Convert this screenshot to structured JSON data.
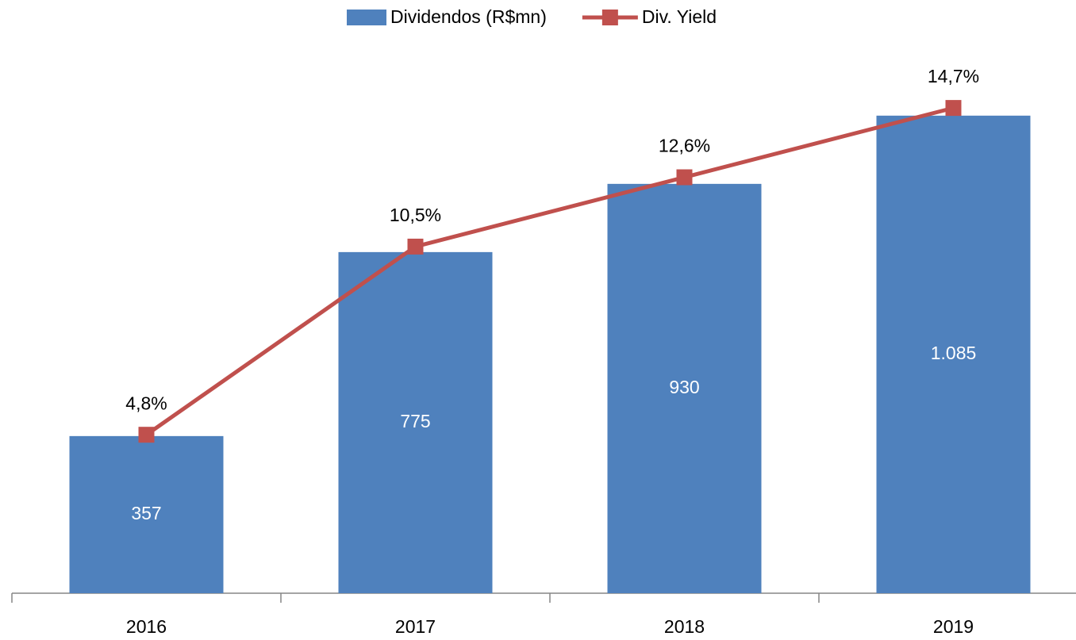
{
  "chart_data": {
    "type": "bar",
    "categories": [
      "2016",
      "2017",
      "2018",
      "2019"
    ],
    "series": [
      {
        "name": "Dividendos (R$mn)",
        "type": "bar",
        "color": "#4f81bd",
        "values": [
          357,
          775,
          930,
          1085
        ],
        "value_labels": [
          "357",
          "775",
          "930",
          "1.085"
        ]
      },
      {
        "name": "Div. Yield",
        "type": "line",
        "axis": "y2",
        "color": "#c0504d",
        "values": [
          4.8,
          10.5,
          12.6,
          14.7
        ],
        "value_labels": [
          "4,8%",
          "10,5%",
          "12,6%",
          "14,7%"
        ]
      }
    ],
    "ylim": [
      0,
      1200
    ],
    "y2lim": [
      0,
      16
    ],
    "legend": "top"
  }
}
